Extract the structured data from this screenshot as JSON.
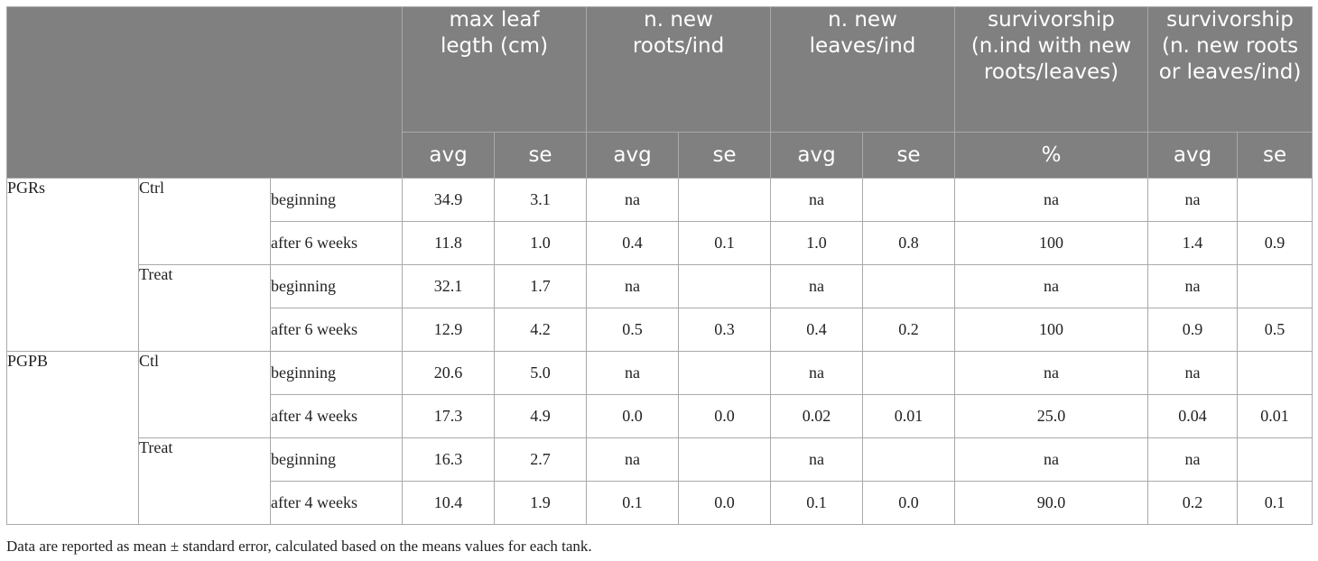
{
  "header": {
    "max_leaf": "max leaf legth (cm)",
    "new_roots": "n. new roots/ind",
    "new_leaves": "n. new leaves/ind",
    "surv_pct": "survivorship (n.ind with new roots/leaves)",
    "surv_avg": "survivorship (n. new roots or leaves/ind)",
    "avg": "avg",
    "se": "se",
    "pct": "%"
  },
  "groups": [
    {
      "name": "PGRs",
      "conditions": [
        {
          "name": "Ctrl",
          "rows": [
            {
              "time": "beginning",
              "leaf_avg": "34.9",
              "leaf_se": "3.1",
              "roots_avg": "na",
              "roots_se": "",
              "leaves_avg": "na",
              "leaves_se": "",
              "surv_pct": "na",
              "surv_avg": "na",
              "surv_se": ""
            },
            {
              "time": "after 6 weeks",
              "leaf_avg": "11.8",
              "leaf_se": "1.0",
              "roots_avg": "0.4",
              "roots_se": "0.1",
              "leaves_avg": "1.0",
              "leaves_se": "0.8",
              "surv_pct": "100",
              "surv_avg": "1.4",
              "surv_se": "0.9"
            }
          ]
        },
        {
          "name": "Treat",
          "rows": [
            {
              "time": "beginning",
              "leaf_avg": "32.1",
              "leaf_se": "1.7",
              "roots_avg": "na",
              "roots_se": "",
              "leaves_avg": "na",
              "leaves_se": "",
              "surv_pct": "na",
              "surv_avg": "na",
              "surv_se": ""
            },
            {
              "time": "after 6 weeks",
              "leaf_avg": "12.9",
              "leaf_se": "4.2",
              "roots_avg": "0.5",
              "roots_se": "0.3",
              "leaves_avg": "0.4",
              "leaves_se": "0.2",
              "surv_pct": "100",
              "surv_avg": "0.9",
              "surv_se": "0.5"
            }
          ]
        }
      ]
    },
    {
      "name": "PGPB",
      "conditions": [
        {
          "name": "Ctl",
          "rows": [
            {
              "time": "beginning",
              "leaf_avg": "20.6",
              "leaf_se": "5.0",
              "roots_avg": "na",
              "roots_se": "",
              "leaves_avg": "na",
              "leaves_se": "",
              "surv_pct": "na",
              "surv_avg": "na",
              "surv_se": ""
            },
            {
              "time": "after 4 weeks",
              "leaf_avg": "17.3",
              "leaf_se": "4.9",
              "roots_avg": "0.0",
              "roots_se": "0.0",
              "leaves_avg": "0.02",
              "leaves_se": "0.01",
              "surv_pct": "25.0",
              "surv_avg": "0.04",
              "surv_se": "0.01"
            }
          ]
        },
        {
          "name": "Treat",
          "rows": [
            {
              "time": "beginning",
              "leaf_avg": "16.3",
              "leaf_se": "2.7",
              "roots_avg": "na",
              "roots_se": "",
              "leaves_avg": "na",
              "leaves_se": "",
              "surv_pct": "na",
              "surv_avg": "na",
              "surv_se": ""
            },
            {
              "time": "after 4 weeks",
              "leaf_avg": "10.4",
              "leaf_se": "1.9",
              "roots_avg": "0.1",
              "roots_se": "0.0",
              "leaves_avg": "0.1",
              "leaves_se": "0.0",
              "surv_pct": "90.0",
              "surv_avg": "0.2",
              "surv_se": "0.1"
            }
          ]
        }
      ]
    }
  ],
  "footnote": "Data are reported as mean ± standard error, calculated based on the means values for each tank."
}
